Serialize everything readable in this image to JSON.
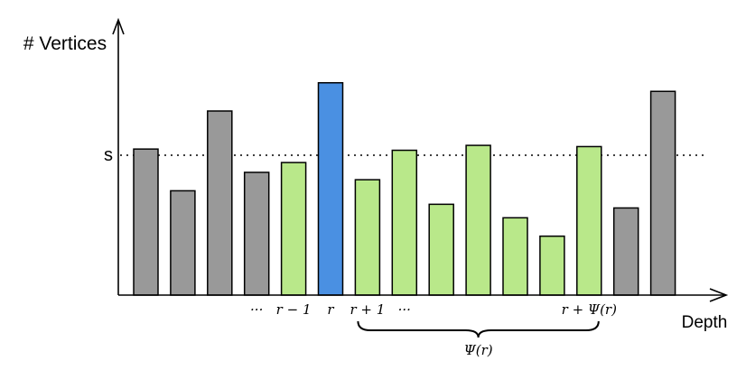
{
  "chart_data": {
    "type": "bar",
    "ylabel": "# Vertices",
    "xlabel": "Depth",
    "threshold": {
      "label": "s",
      "value": 0.57
    },
    "ylim": [
      0,
      1.0
    ],
    "bars": [
      {
        "value": 0.595,
        "color": "#999999",
        "label": ""
      },
      {
        "value": 0.425,
        "color": "#999999",
        "label": ""
      },
      {
        "value": 0.75,
        "color": "#999999",
        "label": ""
      },
      {
        "value": 0.5,
        "color": "#999999",
        "label": "···"
      },
      {
        "value": 0.54,
        "color": "#b9e88a",
        "label": "r − 1"
      },
      {
        "value": 0.865,
        "color": "#4a90e2",
        "label": "r"
      },
      {
        "value": 0.47,
        "color": "#b9e88a",
        "label": "r + 1"
      },
      {
        "value": 0.59,
        "color": "#b9e88a",
        "label": "···"
      },
      {
        "value": 0.37,
        "color": "#b9e88a",
        "label": ""
      },
      {
        "value": 0.61,
        "color": "#b9e88a",
        "label": ""
      },
      {
        "value": 0.315,
        "color": "#b9e88a",
        "label": ""
      },
      {
        "value": 0.24,
        "color": "#b9e88a",
        "label": ""
      },
      {
        "value": 0.605,
        "color": "#b9e88a",
        "label": "r + Ψ(r)"
      },
      {
        "value": 0.355,
        "color": "#999999",
        "label": ""
      },
      {
        "value": 0.83,
        "color": "#999999",
        "label": ""
      }
    ],
    "brace": {
      "label": "Ψ(r)",
      "from_bar": 6,
      "to_bar": 12
    }
  }
}
